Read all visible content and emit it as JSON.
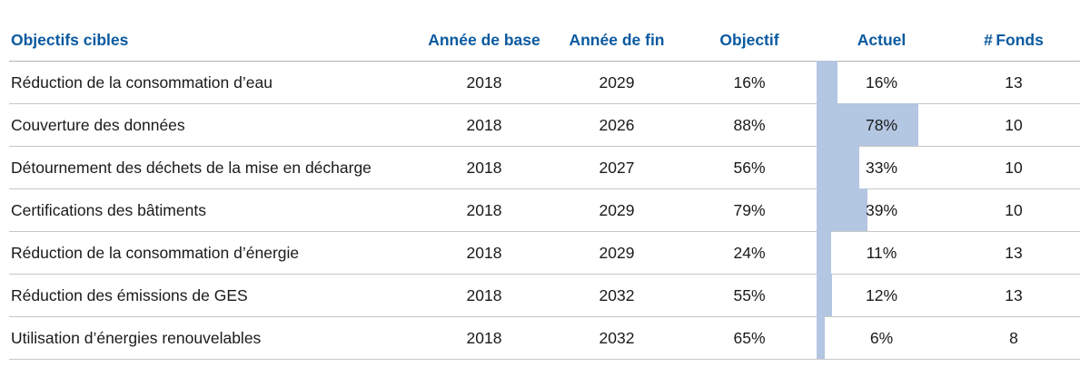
{
  "headers": {
    "name": "Objectifs cibles",
    "base": "Année de base",
    "end": "Année de fin",
    "objective": "Objectif",
    "actual": "Actuel",
    "funds": "# Fonds"
  },
  "colors": {
    "header_text": "#0a5aa0",
    "bar": "#b3c6e2",
    "divider": "#c7c7c7"
  },
  "chart_data": {
    "type": "table",
    "columns": [
      "Objectifs cibles",
      "Année de base",
      "Année de fin",
      "Objectif",
      "Actuel",
      "# Fonds"
    ],
    "bar_column": "Actuel",
    "bar_max": 100,
    "rows": [
      {
        "name": "Réduction de la consommation d’eau",
        "base": "2018",
        "end": "2029",
        "objective": "16%",
        "actual": "16%",
        "actual_value": 16,
        "funds": "13"
      },
      {
        "name": "Couverture des données",
        "base": "2018",
        "end": "2026",
        "objective": "88%",
        "actual": "78%",
        "actual_value": 78,
        "funds": "10"
      },
      {
        "name": "Détournement des déchets de la mise en décharge",
        "base": "2018",
        "end": "2027",
        "objective": "56%",
        "actual": "33%",
        "actual_value": 33,
        "funds": "10"
      },
      {
        "name": "Certifications des bâtiments",
        "base": "2018",
        "end": "2029",
        "objective": "79%",
        "actual": "39%",
        "actual_value": 39,
        "funds": "10"
      },
      {
        "name": "Réduction de la consommation d’énergie",
        "base": "2018",
        "end": "2029",
        "objective": "24%",
        "actual": "11%",
        "actual_value": 11,
        "funds": "13"
      },
      {
        "name": "Réduction des émissions de GES",
        "base": "2018",
        "end": "2032",
        "objective": "55%",
        "actual": "12%",
        "actual_value": 12,
        "funds": "13"
      },
      {
        "name": "Utilisation d’énergies renouvelables",
        "base": "2018",
        "end": "2032",
        "objective": "65%",
        "actual": "6%",
        "actual_value": 6,
        "funds": "8"
      }
    ]
  }
}
